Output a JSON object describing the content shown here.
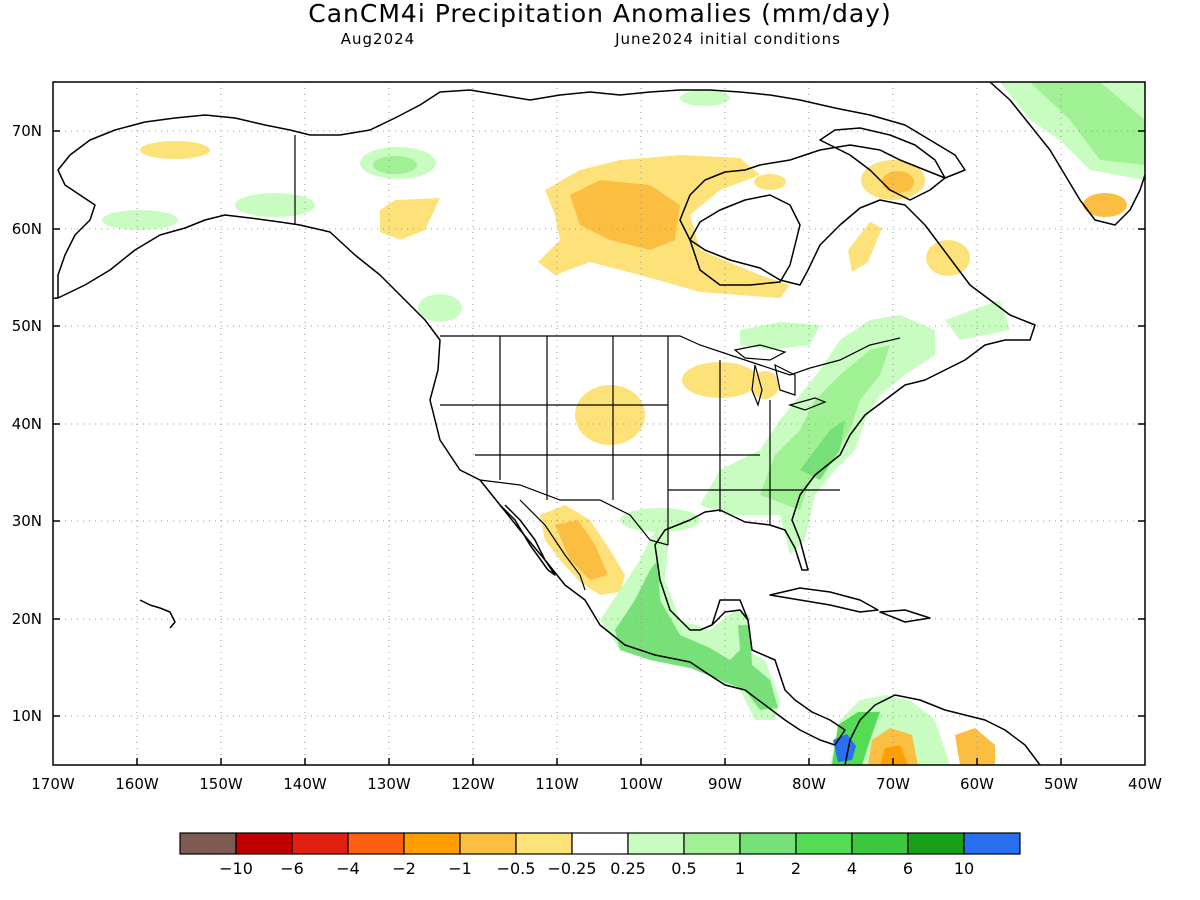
{
  "title": "CanCM4i Precipitation Anomalies (mm/day)",
  "subtitle_left": "Aug2024",
  "subtitle_right": "June2024 initial conditions",
  "map": {
    "lon_range": [
      -170,
      -40
    ],
    "lat_range": [
      5,
      75
    ],
    "lat_ticks": [
      "10N",
      "20N",
      "30N",
      "40N",
      "50N",
      "60N",
      "70N"
    ],
    "lon_ticks": [
      "170W",
      "160W",
      "150W",
      "140W",
      "130W",
      "120W",
      "110W",
      "100W",
      "90W",
      "80W",
      "70W",
      "60W",
      "50W",
      "40W"
    ],
    "gridlines": "dotted",
    "coastline_color": "#000000"
  },
  "colorbar": {
    "colors": [
      "#7f5a50",
      "#c00000",
      "#e02010",
      "#ff6010",
      "#ff9e00",
      "#fbbe40",
      "#fde27a",
      "#ffffff",
      "#c8fcc0",
      "#a0f094",
      "#78e078",
      "#54dc54",
      "#3cc83c",
      "#18a018",
      "#2870f0"
    ],
    "labels": [
      "−10",
      "−6",
      "−4",
      "−2",
      "−1",
      "−0.5",
      "−0.25",
      "0.25",
      "0.5",
      "1",
      "2",
      "4",
      "6",
      "10"
    ]
  },
  "anomaly_areas": [
    {
      "region": "Alaska north slope",
      "sign": "dry",
      "level": "-0.25"
    },
    {
      "region": "Southwest Alaska",
      "sign": "wet",
      "level": "0.5"
    },
    {
      "region": "Yukon",
      "sign": "wet",
      "level": "1"
    },
    {
      "region": "Northern BC",
      "sign": "dry",
      "level": "-0.25"
    },
    {
      "region": "Central Canada / Hudson Bay west",
      "sign": "dry",
      "level": "-1"
    },
    {
      "region": "Northern Ontario",
      "sign": "dry",
      "level": "-0.25"
    },
    {
      "region": "Quebec",
      "sign": "dry",
      "level": "-0.5"
    },
    {
      "region": "Baffin Island",
      "sign": "dry",
      "level": "-1"
    },
    {
      "region": "Central Rockies / Colorado",
      "sign": "dry",
      "level": "-0.5"
    },
    {
      "region": "Upper Midwest",
      "sign": "dry",
      "level": "-0.25"
    },
    {
      "region": "Eastern US",
      "sign": "wet",
      "level": "1"
    },
    {
      "region": "Northwest Mexico",
      "sign": "dry",
      "level": "-1"
    },
    {
      "region": "Southern Mexico / Central America",
      "sign": "wet",
      "level": "2"
    },
    {
      "region": "Northern Colombia",
      "sign": "dry",
      "level": "-2"
    },
    {
      "region": "Colombia Pacific coast",
      "sign": "wet",
      "level": "10"
    },
    {
      "region": "Venezuela",
      "sign": "dry",
      "level": "-1"
    },
    {
      "region": "Greenland east coast",
      "sign": "wet",
      "level": "1"
    },
    {
      "region": "Southern Greenland",
      "sign": "dry",
      "level": "-1"
    }
  ]
}
